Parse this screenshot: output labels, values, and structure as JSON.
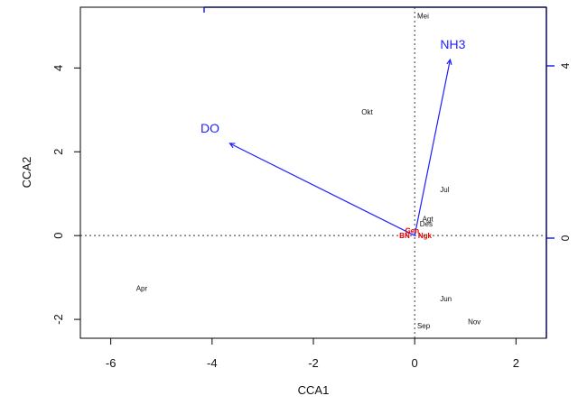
{
  "chart_data": {
    "type": "scatter",
    "title": "",
    "xlabel": "CCA1",
    "ylabel": "CCA2",
    "xlim": [
      -6.6,
      2.6
    ],
    "ylim": [
      -2.45,
      5.45
    ],
    "x_ticks": [
      "-6",
      "-4",
      "-2",
      "0",
      "2"
    ],
    "y_ticks": [
      "-2",
      "0",
      "2",
      "4"
    ],
    "grid": false,
    "colors": {
      "axes": "#000000",
      "arrows": "#1f1fff",
      "species": "#e00000",
      "sites": "#111111"
    },
    "sites": [
      {
        "label": "Mei",
        "x": 0.05,
        "y": 5.25
      },
      {
        "label": "Okt",
        "x": -1.05,
        "y": 2.95
      },
      {
        "label": "Jul",
        "x": 0.5,
        "y": 1.1
      },
      {
        "label": "Agt",
        "x": 0.15,
        "y": 0.4
      },
      {
        "label": "Des",
        "x": 0.1,
        "y": 0.28
      },
      {
        "label": "Apr",
        "x": -5.5,
        "y": -1.25
      },
      {
        "label": "Jun",
        "x": 0.5,
        "y": -1.5
      },
      {
        "label": "Nov",
        "x": 1.05,
        "y": -2.05
      },
      {
        "label": "Sep",
        "x": 0.05,
        "y": -2.15
      }
    ],
    "species_labels": [
      {
        "label": "BN",
        "x": -0.2,
        "y": 0.0
      },
      {
        "label": "Gen",
        "x": -0.05,
        "y": 0.12
      },
      {
        "label": "Ngk",
        "x": 0.2,
        "y": 0.0
      }
    ],
    "vectors": [
      {
        "name": "NH3",
        "x": 0.7,
        "y": 4.2
      },
      {
        "name": "DO",
        "x": -3.65,
        "y": 2.2
      }
    ],
    "secondary_axis_right_labels": [
      "4",
      "0"
    ]
  }
}
